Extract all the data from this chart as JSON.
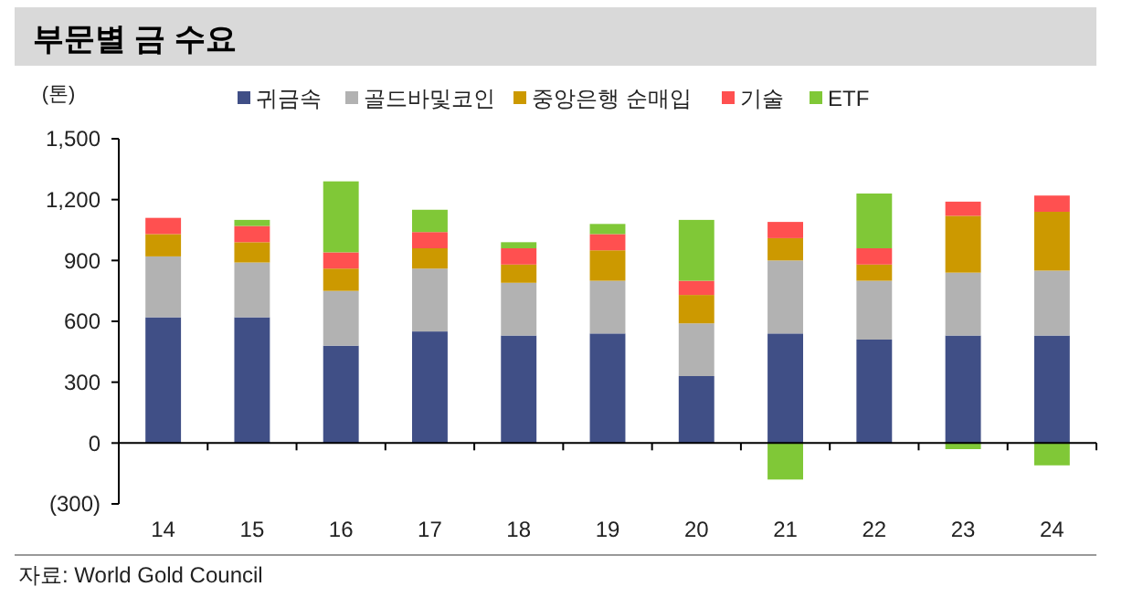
{
  "chart_data": {
    "type": "bar",
    "title": "부문별 금 수요",
    "ylabel": "(톤)",
    "stacked": true,
    "legend": "top",
    "categories": [
      "14",
      "15",
      "16",
      "17",
      "18",
      "19",
      "20",
      "21",
      "22",
      "23",
      "24"
    ],
    "series": [
      {
        "name": "귀금속",
        "color": "#404f86",
        "values": [
          620,
          620,
          480,
          550,
          530,
          540,
          330,
          540,
          510,
          530,
          530
        ]
      },
      {
        "name": "골드바및코인",
        "color": "#b2b2b2",
        "values": [
          300,
          270,
          270,
          310,
          260,
          260,
          260,
          360,
          290,
          310,
          320
        ]
      },
      {
        "name": "중앙은행 순매입",
        "color": "#cc9900",
        "values": [
          110,
          100,
          110,
          100,
          90,
          150,
          140,
          110,
          80,
          280,
          290
        ]
      },
      {
        "name": "기술",
        "color": "#ff5050",
        "values": [
          80,
          80,
          80,
          80,
          80,
          80,
          70,
          80,
          80,
          70,
          80
        ]
      },
      {
        "name": "ETF",
        "color": "#80c837",
        "values": [
          0,
          30,
          350,
          110,
          30,
          50,
          300,
          -180,
          270,
          -30,
          -110
        ]
      }
    ],
    "ylim": [
      -300,
      1500
    ],
    "yticks": [
      {
        "value": -300,
        "label": "(300)"
      },
      0,
      300,
      600,
      900,
      {
        "value": 1200,
        "label": "1,200"
      },
      {
        "value": 1500,
        "label": "1,500"
      }
    ],
    "annotations": [
      "자료: World Gold Council"
    ]
  }
}
